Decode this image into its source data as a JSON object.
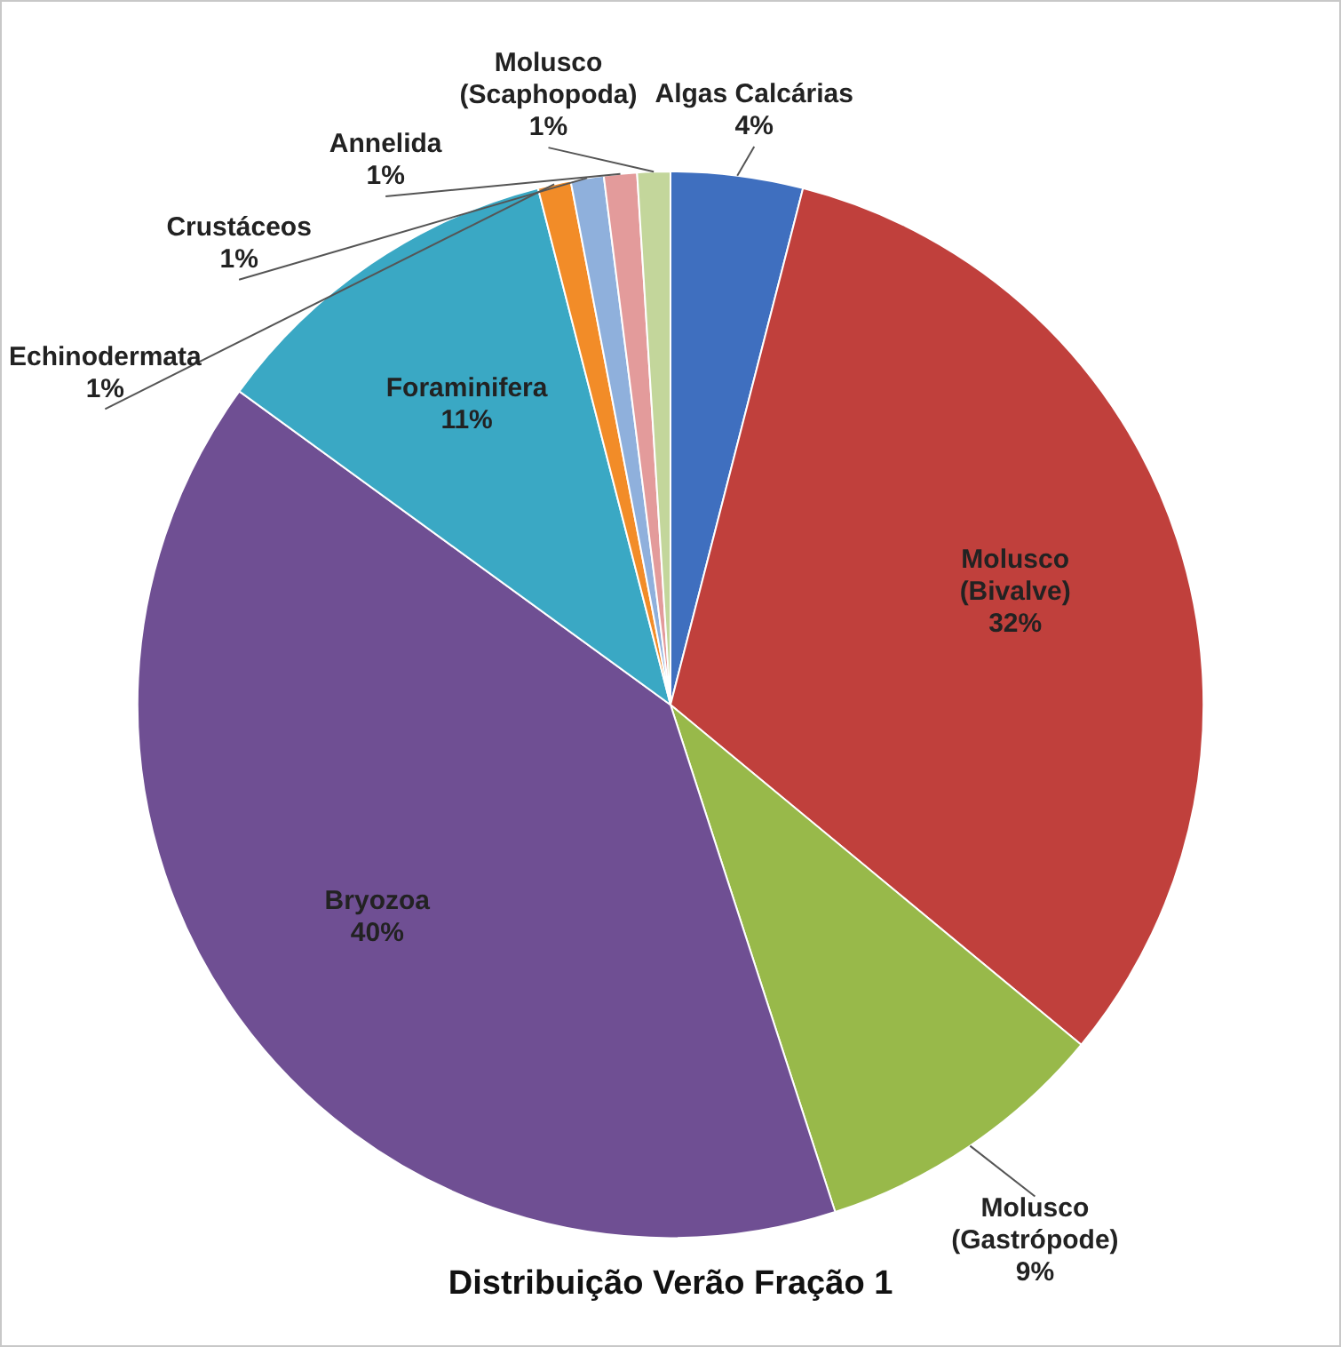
{
  "chart_data": {
    "type": "pie",
    "title": "Distribuição Verão Fração 1",
    "categories": [
      "Algas Calcárias",
      "Molusco (Bivalve)",
      "Molusco (Gastrópode)",
      "Bryozoa",
      "Foraminifera",
      "Echinodermata",
      "Crustáceos",
      "Annelida",
      "Molusco (Scaphopoda)"
    ],
    "values": [
      4,
      32,
      9,
      40,
      11,
      1,
      1,
      1,
      1
    ],
    "colors": [
      "#3f6fbf",
      "#c0403c",
      "#98b94a",
      "#6f4f93",
      "#3aa8c4",
      "#f28c28",
      "#8fb0dc",
      "#e39b9b",
      "#c3d69b"
    ],
    "value_labels": [
      "4%",
      "32%",
      "9%",
      "40%",
      "11%",
      "1%",
      "1%",
      "1%",
      "1%"
    ],
    "legend": false
  }
}
